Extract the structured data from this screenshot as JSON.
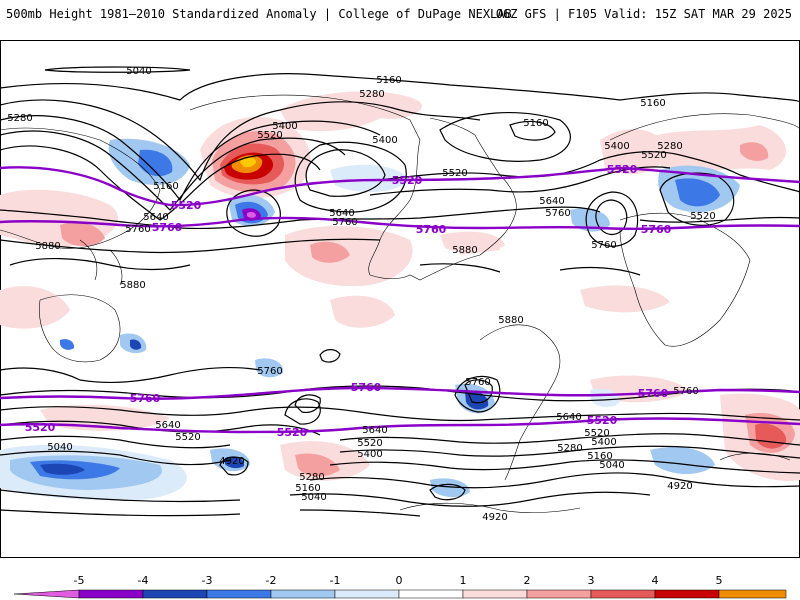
{
  "header": {
    "title_left": "500mb Height 1981–2010 Standardized Anomaly | College of DuPage NEXLAB",
    "title_right": "06Z GFS | F105 Valid: 15Z SAT MAR 29 2025"
  },
  "colors": {
    "contour_black": "#000000",
    "contour_purple": "#8a00c8",
    "land_outline": "#000000"
  },
  "contour_labels": {
    "black": [
      "5040",
      "5160",
      "5280",
      "5400",
      "5520",
      "5160",
      "5400",
      "5280",
      "5520",
      "5160",
      "5400",
      "5280",
      "5520",
      "5160",
      "5640",
      "5760",
      "5520",
      "5640",
      "5760",
      "5880",
      "5880",
      "5880",
      "5880",
      "5760",
      "5640",
      "5760",
      "5760",
      "5640",
      "5520",
      "5040",
      "4920",
      "5280",
      "5160",
      "5040",
      "5640",
      "5520",
      "5400",
      "4920",
      "5760",
      "5640",
      "5520",
      "5400",
      "5280",
      "5160",
      "5040",
      "4920",
      "5760"
    ],
    "purple": [
      "5520",
      "5760",
      "5520",
      "5760",
      "5520",
      "5760",
      "5760",
      "5520",
      "5760",
      "5520",
      "5520",
      "5760"
    ]
  },
  "colorbar": {
    "ticks": [
      "-5",
      "-4",
      "-3",
      "-2",
      "-1",
      "0",
      "1",
      "2",
      "3",
      "4",
      "5"
    ],
    "colors": [
      "#e05ce0",
      "#8a00c8",
      "#1c46b4",
      "#3c78e6",
      "#a0c8f0",
      "#dcebfa",
      "#ffffff",
      "#fadcdc",
      "#f5a0a0",
      "#e65a5a",
      "#c80000",
      "#f08c00",
      "#ffc800"
    ]
  }
}
